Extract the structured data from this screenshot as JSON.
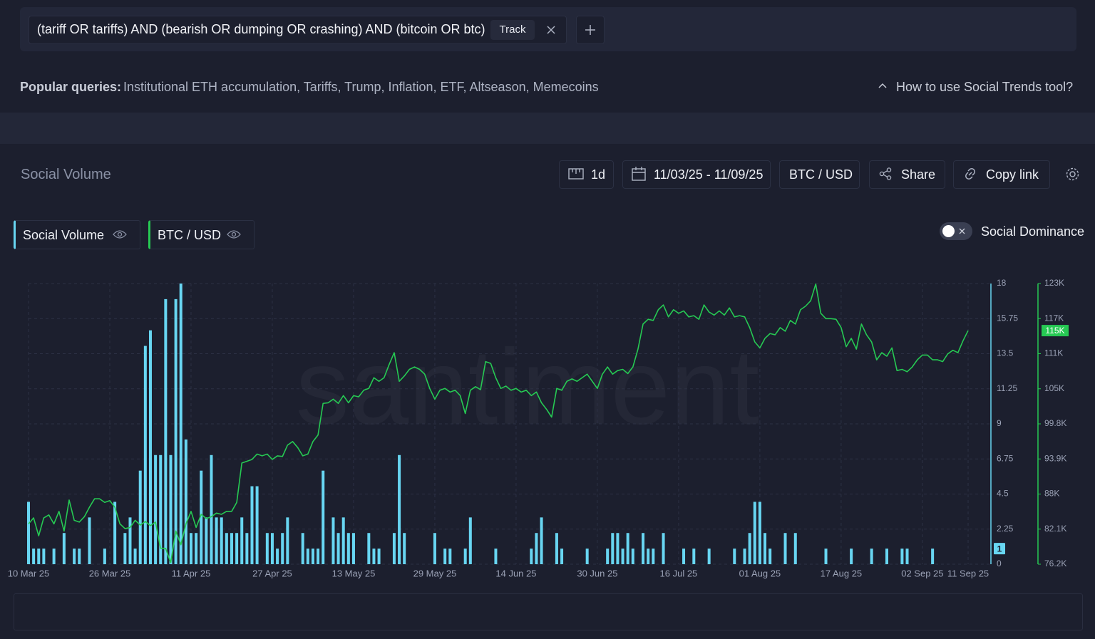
{
  "header": {
    "query": "(tariff OR tariffs) AND (bearish OR dumping OR crashing) AND (bitcoin OR btc)",
    "track": "Track",
    "popular_label": "Popular queries:",
    "popular_queries": "Institutional ETH accumulation, Tariffs, Trump, Inflation, ETF, Altseason, Memecoins",
    "help": "How to use Social Trends tool?"
  },
  "panel": {
    "title": "Social Volume",
    "interval": "1d",
    "date_range": "11/03/25 - 11/09/25",
    "pair": "BTC / USD",
    "share": "Share",
    "copy_link": "Copy link",
    "toggle": "Social Dominance"
  },
  "chart_data": {
    "type": "combo",
    "watermark": "santiment",
    "grid": true,
    "x": [
      "2025-03-10",
      "2025-03-11",
      "2025-03-12",
      "2025-03-13",
      "2025-03-14",
      "2025-03-15",
      "2025-03-16",
      "2025-03-17",
      "2025-03-18",
      "2025-03-19",
      "2025-03-20",
      "2025-03-21",
      "2025-03-22",
      "2025-03-23",
      "2025-03-24",
      "2025-03-25",
      "2025-03-26",
      "2025-03-27",
      "2025-03-28",
      "2025-03-29",
      "2025-03-30",
      "2025-03-31",
      "2025-04-01",
      "2025-04-02",
      "2025-04-03",
      "2025-04-04",
      "2025-04-05",
      "2025-04-06",
      "2025-04-07",
      "2025-04-08",
      "2025-04-09",
      "2025-04-10",
      "2025-04-11",
      "2025-04-12",
      "2025-04-13",
      "2025-04-14",
      "2025-04-15",
      "2025-04-16",
      "2025-04-17",
      "2025-04-18",
      "2025-04-19",
      "2025-04-20",
      "2025-04-21",
      "2025-04-22",
      "2025-04-23",
      "2025-04-24",
      "2025-04-25",
      "2025-04-26",
      "2025-04-27",
      "2025-04-28",
      "2025-04-29",
      "2025-04-30",
      "2025-05-01",
      "2025-05-02",
      "2025-05-03",
      "2025-05-04",
      "2025-05-05",
      "2025-05-06",
      "2025-05-07",
      "2025-05-08",
      "2025-05-09",
      "2025-05-10",
      "2025-05-11",
      "2025-05-12",
      "2025-05-13",
      "2025-05-14",
      "2025-05-15",
      "2025-05-16",
      "2025-05-17",
      "2025-05-18",
      "2025-05-19",
      "2025-05-20",
      "2025-05-21",
      "2025-05-22",
      "2025-05-23",
      "2025-05-24",
      "2025-05-25",
      "2025-05-26",
      "2025-05-27",
      "2025-05-28",
      "2025-05-29",
      "2025-05-30",
      "2025-05-31",
      "2025-06-01",
      "2025-06-02",
      "2025-06-03",
      "2025-06-04",
      "2025-06-05",
      "2025-06-06",
      "2025-06-07",
      "2025-06-08",
      "2025-06-09",
      "2025-06-10",
      "2025-06-11",
      "2025-06-12",
      "2025-06-13",
      "2025-06-14",
      "2025-06-15",
      "2025-06-16",
      "2025-06-17",
      "2025-06-18",
      "2025-06-19",
      "2025-06-20",
      "2025-06-21",
      "2025-06-22",
      "2025-06-23",
      "2025-06-24",
      "2025-06-25",
      "2025-06-26",
      "2025-06-27",
      "2025-06-28",
      "2025-06-29",
      "2025-06-30",
      "2025-07-01",
      "2025-07-02",
      "2025-07-03",
      "2025-07-04",
      "2025-07-05",
      "2025-07-06",
      "2025-07-07",
      "2025-07-08",
      "2025-07-09",
      "2025-07-10",
      "2025-07-11",
      "2025-07-12",
      "2025-07-13",
      "2025-07-14",
      "2025-07-15",
      "2025-07-16",
      "2025-07-17",
      "2025-07-18",
      "2025-07-19",
      "2025-07-20",
      "2025-07-21",
      "2025-07-22",
      "2025-07-23",
      "2025-07-24",
      "2025-07-25",
      "2025-07-26",
      "2025-07-27",
      "2025-07-28",
      "2025-07-29",
      "2025-07-30",
      "2025-07-31",
      "2025-08-01",
      "2025-08-02",
      "2025-08-03",
      "2025-08-04",
      "2025-08-05",
      "2025-08-06",
      "2025-08-07",
      "2025-08-08",
      "2025-08-09",
      "2025-08-10",
      "2025-08-11",
      "2025-08-12",
      "2025-08-13",
      "2025-08-14",
      "2025-08-15",
      "2025-08-16",
      "2025-08-17",
      "2025-08-18",
      "2025-08-19",
      "2025-08-20",
      "2025-08-21",
      "2025-08-22",
      "2025-08-23",
      "2025-08-24",
      "2025-08-25",
      "2025-08-26",
      "2025-08-27",
      "2025-08-28",
      "2025-08-29",
      "2025-08-30",
      "2025-08-31",
      "2025-09-01",
      "2025-09-02",
      "2025-09-03",
      "2025-09-04",
      "2025-09-05",
      "2025-09-06",
      "2025-09-07",
      "2025-09-08",
      "2025-09-09",
      "2025-09-10",
      "2025-09-11"
    ],
    "xticks": [
      {
        "value": "2025-03-10",
        "label": "10 Mar 25"
      },
      {
        "value": "2025-03-26",
        "label": "26 Mar 25"
      },
      {
        "value": "2025-04-11",
        "label": "11 Apr 25"
      },
      {
        "value": "2025-04-27",
        "label": "27 Apr 25"
      },
      {
        "value": "2025-05-13",
        "label": "13 May 25"
      },
      {
        "value": "2025-05-29",
        "label": "29 May 25"
      },
      {
        "value": "2025-06-14",
        "label": "14 Jun 25"
      },
      {
        "value": "2025-06-30",
        "label": "30 Jun 25"
      },
      {
        "value": "2025-07-16",
        "label": "16 Jul 25"
      },
      {
        "value": "2025-08-01",
        "label": "01 Aug 25"
      },
      {
        "value": "2025-08-17",
        "label": "17 Aug 25"
      },
      {
        "value": "2025-09-02",
        "label": "02 Sep 25"
      },
      {
        "value": "2025-09-11",
        "label": "11 Sep 25"
      }
    ],
    "ylim": [
      0,
      18
    ],
    "yticks": [
      0,
      2.25,
      4.5,
      6.75,
      9,
      11.25,
      13.5,
      15.75,
      18
    ],
    "y2lim": [
      76240,
      123290
    ],
    "y2ticks": [
      {
        "value": 76240,
        "label": "76.2K"
      },
      {
        "value": 82121,
        "label": "82.1K"
      },
      {
        "value": 88003,
        "label": "88K"
      },
      {
        "value": 93884,
        "label": "93.9K"
      },
      {
        "value": 99765,
        "label": "99.8K"
      },
      {
        "value": 105646,
        "label": "105K"
      },
      {
        "value": 111528,
        "label": "111K"
      },
      {
        "value": 117409,
        "label": "117K"
      },
      {
        "value": 123290,
        "label": "123K"
      }
    ],
    "series": [
      {
        "name": "Social Volume",
        "type": "bar",
        "axis": "y",
        "color": "#68d6f2",
        "current": 1,
        "values": [
          4,
          1,
          1,
          1,
          0,
          1,
          0,
          2,
          0,
          1,
          1,
          0,
          3,
          0,
          0,
          1,
          0,
          4,
          0,
          2,
          3,
          1,
          6,
          14,
          15,
          7,
          7,
          17,
          7,
          17,
          18,
          8,
          2,
          2,
          6,
          3,
          7,
          3,
          3,
          2,
          2,
          2,
          3,
          2,
          5,
          5,
          0,
          2,
          2,
          1,
          2,
          3,
          0,
          0,
          2,
          1,
          1,
          1,
          6,
          0,
          3,
          2,
          3,
          2,
          2,
          0,
          0,
          2,
          1,
          1,
          0,
          0,
          2,
          7,
          2,
          0,
          0,
          0,
          0,
          0,
          2,
          0,
          1,
          1,
          0,
          0,
          1,
          3,
          0,
          0,
          0,
          0,
          1,
          0,
          0,
          0,
          0,
          0,
          0,
          1,
          2,
          3,
          0,
          0,
          2,
          1,
          0,
          0,
          0,
          0,
          1,
          0,
          0,
          0,
          1,
          2,
          2,
          1,
          2,
          1,
          0,
          2,
          1,
          1,
          0,
          2,
          0,
          0,
          0,
          1,
          0,
          1,
          0,
          0,
          1,
          0,
          0,
          0,
          0,
          1,
          0,
          1,
          2,
          4,
          4,
          2,
          1,
          0,
          0,
          2,
          0,
          2,
          0,
          0,
          0,
          0,
          0,
          1,
          0,
          0,
          0,
          0,
          1,
          0,
          0,
          0,
          1,
          0,
          0,
          1,
          0,
          0,
          1,
          1,
          0,
          0,
          0,
          0,
          1,
          0,
          0,
          0,
          0,
          0,
          0,
          0
        ]
      },
      {
        "name": "BTC / USD",
        "type": "line",
        "axis": "y2",
        "color": "#26c953",
        "current_label": "115K",
        "values": [
          83000,
          84000,
          81000,
          84000,
          84500,
          83000,
          85100,
          81800,
          87000,
          83600,
          83300,
          84200,
          85800,
          87200,
          87200,
          86600,
          86900,
          85800,
          83000,
          82200,
          82400,
          83600,
          82800,
          83400,
          82700,
          83300,
          78900,
          78900,
          76500,
          81800,
          79500,
          83000,
          85100,
          82400,
          84600,
          83900,
          84200,
          84800,
          84600,
          85100,
          85100,
          86600,
          93200,
          93500,
          93800,
          94700,
          94400,
          94700,
          93800,
          94400,
          94300,
          96200,
          96800,
          95800,
          94400,
          94700,
          96800,
          97900,
          103200,
          103300,
          103900,
          103200,
          104500,
          103300,
          104500,
          104300,
          105400,
          105700,
          107500,
          106900,
          107500,
          109700,
          111700,
          106900,
          107800,
          108900,
          109300,
          108900,
          108100,
          105700,
          103900,
          105400,
          105700,
          105100,
          105400,
          104500,
          101500,
          105400,
          106000,
          105500,
          110200,
          109900,
          107500,
          105700,
          106100,
          105400,
          105700,
          105100,
          105400,
          104500,
          105100,
          103300,
          102200,
          100900,
          105700,
          105400,
          106900,
          107300,
          106900,
          107500,
          108100,
          106900,
          105700,
          108100,
          109300,
          108100,
          108700,
          108900,
          108200,
          109300,
          112300,
          116500,
          117300,
          117100,
          118900,
          119700,
          117700,
          118900,
          118300,
          118700,
          117700,
          117900,
          117300,
          119700,
          118500,
          118000,
          118700,
          118000,
          119200,
          117700,
          117900,
          117700,
          115900,
          113500,
          112500,
          114100,
          114900,
          114700,
          115900,
          115300,
          117100,
          116500,
          118900,
          119500,
          120400,
          123200,
          118300,
          117400,
          117400,
          117300,
          115900,
          112700,
          114100,
          112300,
          116500,
          114700,
          113500,
          110500,
          111700,
          111100,
          112500,
          108700,
          108900,
          108500,
          109300,
          110500,
          111300,
          111300,
          110500,
          110500,
          110200,
          111500,
          112100,
          111700,
          113700,
          115400
        ]
      }
    ]
  }
}
